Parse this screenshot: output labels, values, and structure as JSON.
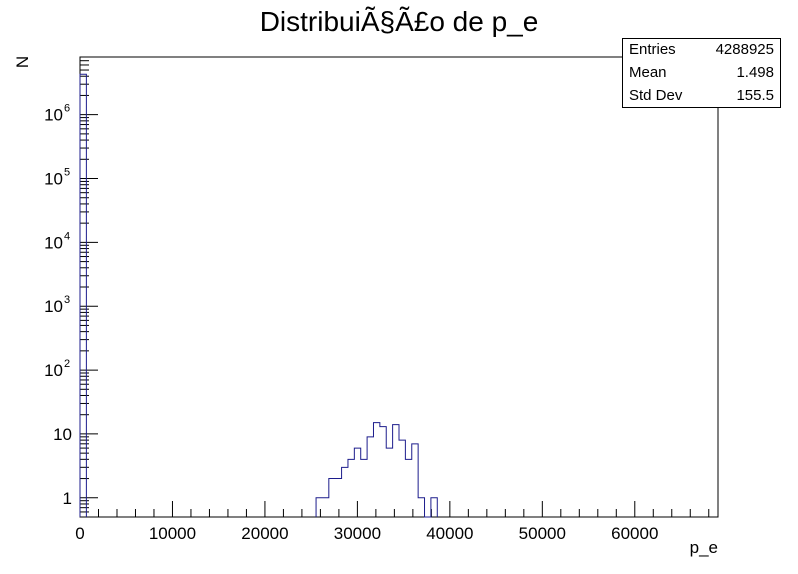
{
  "title": "DistribuiÃ§Ã£o de p_e",
  "stats": {
    "rows": [
      {
        "label": "Entries",
        "value": "4288925"
      },
      {
        "label": "Mean",
        "value": "1.498"
      },
      {
        "label": "Std Dev",
        "value": "155.5"
      }
    ]
  },
  "chart_data": {
    "type": "bar",
    "subtype": "histogram",
    "title": "DistribuiÃ§Ã£o de p_e",
    "xlabel": "p_e",
    "ylabel": "N",
    "yscale": "log",
    "xlim": [
      0,
      69000
    ],
    "ylim": [
      0.5,
      8000000
    ],
    "x_ticks": [
      0,
      10000,
      20000,
      30000,
      40000,
      50000,
      60000
    ],
    "x_tick_labels": [
      "0",
      "10000",
      "20000",
      "30000",
      "40000",
      "50000",
      "60000"
    ],
    "y_ticks": [
      {
        "value": 1,
        "base": "1",
        "exp": ""
      },
      {
        "value": 10,
        "base": "10",
        "exp": ""
      },
      {
        "value": 100,
        "base": "10",
        "exp": "2"
      },
      {
        "value": 1000,
        "base": "10",
        "exp": "3"
      },
      {
        "value": 10000,
        "base": "10",
        "exp": "4"
      },
      {
        "value": 100000,
        "base": "10",
        "exp": "5"
      },
      {
        "value": 1000000,
        "base": "10",
        "exp": "6"
      }
    ],
    "bin_width": 690,
    "bins": [
      {
        "x": 0,
        "y": 4288800
      },
      {
        "x": 25530,
        "y": 1
      },
      {
        "x": 26220,
        "y": 1
      },
      {
        "x": 26910,
        "y": 2
      },
      {
        "x": 27600,
        "y": 2
      },
      {
        "x": 28290,
        "y": 3
      },
      {
        "x": 28980,
        "y": 4
      },
      {
        "x": 29670,
        "y": 6
      },
      {
        "x": 30360,
        "y": 4
      },
      {
        "x": 31050,
        "y": 9
      },
      {
        "x": 31740,
        "y": 15
      },
      {
        "x": 32430,
        "y": 13
      },
      {
        "x": 33120,
        "y": 6
      },
      {
        "x": 33810,
        "y": 14
      },
      {
        "x": 34500,
        "y": 8
      },
      {
        "x": 35190,
        "y": 4
      },
      {
        "x": 35880,
        "y": 7
      },
      {
        "x": 36570,
        "y": 1
      },
      {
        "x": 37260,
        "y": 0
      },
      {
        "x": 37950,
        "y": 1
      }
    ],
    "line_color": "#1c1c8c",
    "grid": false,
    "legend": "stats box top-right"
  }
}
